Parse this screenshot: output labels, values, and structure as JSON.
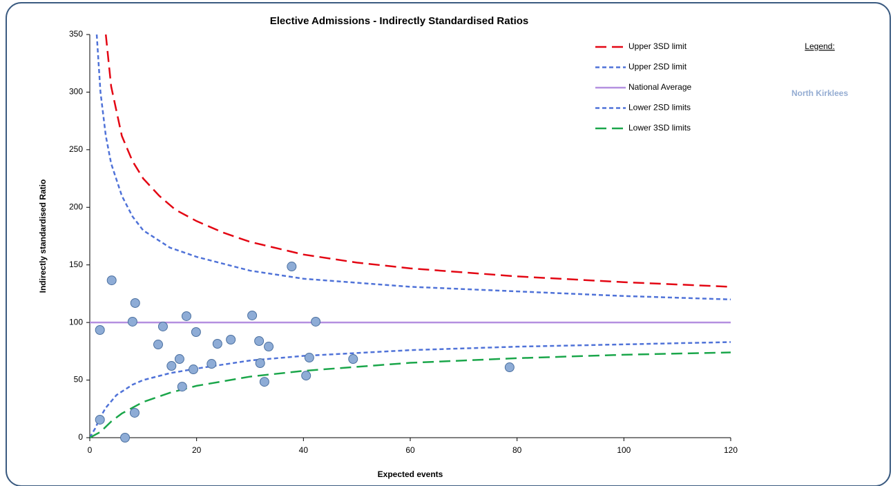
{
  "chart_data": {
    "type": "scatter",
    "title": "Elective Admissions - Indirectly Standardised Ratios",
    "x_label": "Expected events",
    "y_label": "Indirectly standardised Ratio",
    "annotations": [
      "Legend:",
      "North Kirklees"
    ],
    "xlim": [
      0,
      120
    ],
    "xticks": [
      0,
      20,
      40,
      60,
      80,
      100,
      120
    ],
    "ylim": [
      0,
      350
    ],
    "yticks": [
      0,
      50,
      100,
      150,
      200,
      250,
      300,
      350
    ],
    "grid": false,
    "legend": "top-right",
    "series": [
      {
        "name": "Upper 3SD limit",
        "type": "line",
        "style": "long-dash",
        "color": "#e30613",
        "x": [
          3,
          4,
          6,
          8,
          10,
          13,
          16,
          20,
          25,
          30,
          40,
          50,
          60,
          80,
          100,
          120
        ],
        "values": [
          350,
          305,
          262,
          240,
          225,
          210,
          198,
          188,
          178,
          170,
          159,
          152,
          147,
          140,
          135,
          131
        ]
      },
      {
        "name": "Upper 2SD limit",
        "type": "line",
        "style": "short-dash",
        "color": "#4f72d8",
        "x": [
          1.3,
          2,
          3,
          4,
          6,
          8,
          10,
          15,
          20,
          30,
          40,
          60,
          80,
          100,
          120
        ],
        "values": [
          350,
          300,
          262,
          238,
          210,
          192,
          180,
          165,
          157,
          145,
          138,
          131,
          127,
          123,
          120
        ]
      },
      {
        "name": "National Average",
        "type": "line",
        "style": "solid",
        "color": "#b48fe0",
        "x": [
          0,
          120
        ],
        "values": [
          100,
          100
        ]
      },
      {
        "name": "Lower 2SD limits",
        "type": "line",
        "style": "short-dash",
        "color": "#4f72d8",
        "x": [
          0,
          1,
          2,
          3,
          5,
          8,
          10,
          15,
          20,
          30,
          40,
          60,
          80,
          100,
          120
        ],
        "values": [
          0,
          8,
          18,
          26,
          37,
          46,
          50,
          56,
          60,
          67,
          71,
          76,
          79,
          81,
          83
        ]
      },
      {
        "name": "Lower 3SD limits",
        "type": "line",
        "style": "long-dash",
        "color": "#1aa64a",
        "x": [
          0,
          2,
          4,
          6,
          8,
          10,
          15,
          20,
          30,
          40,
          60,
          80,
          100,
          120
        ],
        "values": [
          0,
          5,
          14,
          21,
          26,
          31,
          39,
          45,
          53,
          58,
          65,
          69,
          72,
          74
        ]
      },
      {
        "type": "scatter",
        "color": "#8eacd6",
        "x": [
          1.9,
          1.9,
          6.6,
          4.1,
          8.5,
          8.0,
          8.4,
          12.8,
          13.7,
          15.3,
          16.8,
          17.3,
          18.1,
          19.4,
          19.9,
          22.8,
          23.9,
          26.4,
          30.4,
          31.7,
          31.9,
          32.7,
          33.5,
          37.8,
          40.5,
          41.1,
          42.3,
          49.3,
          78.6
        ],
        "values": [
          93.5,
          15.6,
          0,
          136.6,
          116.9,
          100.7,
          21.6,
          80.9,
          96.5,
          62.3,
          68.3,
          44.3,
          105.5,
          59.3,
          91.7,
          64.1,
          81.5,
          85.1,
          106.1,
          83.9,
          64.7,
          48.5,
          79.1,
          148.6,
          53.9,
          69.5,
          100.7,
          68.3,
          61.1
        ]
      }
    ]
  }
}
